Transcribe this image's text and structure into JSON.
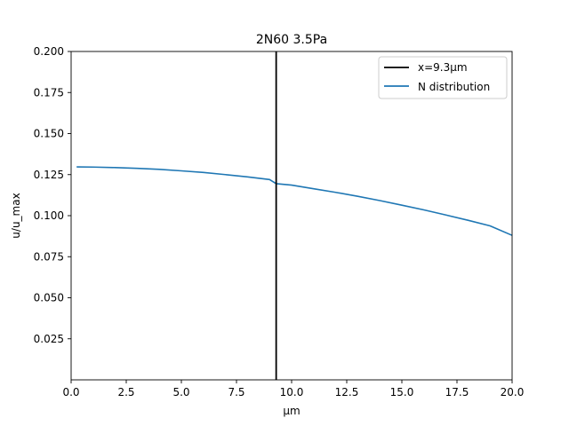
{
  "chart_data": {
    "type": "line",
    "title": "2N60 3.5Pa",
    "xlabel": "µm",
    "ylabel": "u/u_max",
    "xlim": [
      0,
      20
    ],
    "ylim": [
      0,
      0.2
    ],
    "x_ticks": [
      0,
      2.5,
      5,
      7.5,
      10,
      12.5,
      15,
      17.5,
      20
    ],
    "x_tick_labels": [
      "0.0",
      "2.5",
      "5.0",
      "7.5",
      "10.0",
      "12.5",
      "15.0",
      "17.5",
      "20.0"
    ],
    "y_ticks": [
      0.025,
      0.05,
      0.075,
      0.1,
      0.125,
      0.15,
      0.175,
      0.2
    ],
    "y_tick_labels": [
      "0.025",
      "0.050",
      "0.075",
      "0.100",
      "0.125",
      "0.150",
      "0.175",
      "0.200"
    ],
    "grid": false,
    "legend_position": "top-right",
    "vline": {
      "name": "x=9.3µm",
      "x": 9.3,
      "color": "#000000"
    },
    "series": [
      {
        "name": "N distribution",
        "color": "#1f77b4",
        "x": [
          0.25,
          1,
          2,
          3,
          4,
          5,
          6,
          7,
          8,
          9,
          9.3,
          10,
          11,
          12,
          13,
          14,
          15,
          16,
          17,
          18,
          19,
          20
        ],
        "y": [
          0.1297,
          0.1296,
          0.1293,
          0.1288,
          0.1282,
          0.1273,
          0.1263,
          0.125,
          0.1236,
          0.122,
          0.1195,
          0.1186,
          0.1164,
          0.1142,
          0.1118,
          0.1092,
          0.1064,
          0.1035,
          0.1004,
          0.0972,
          0.0938,
          0.088
        ]
      }
    ]
  }
}
